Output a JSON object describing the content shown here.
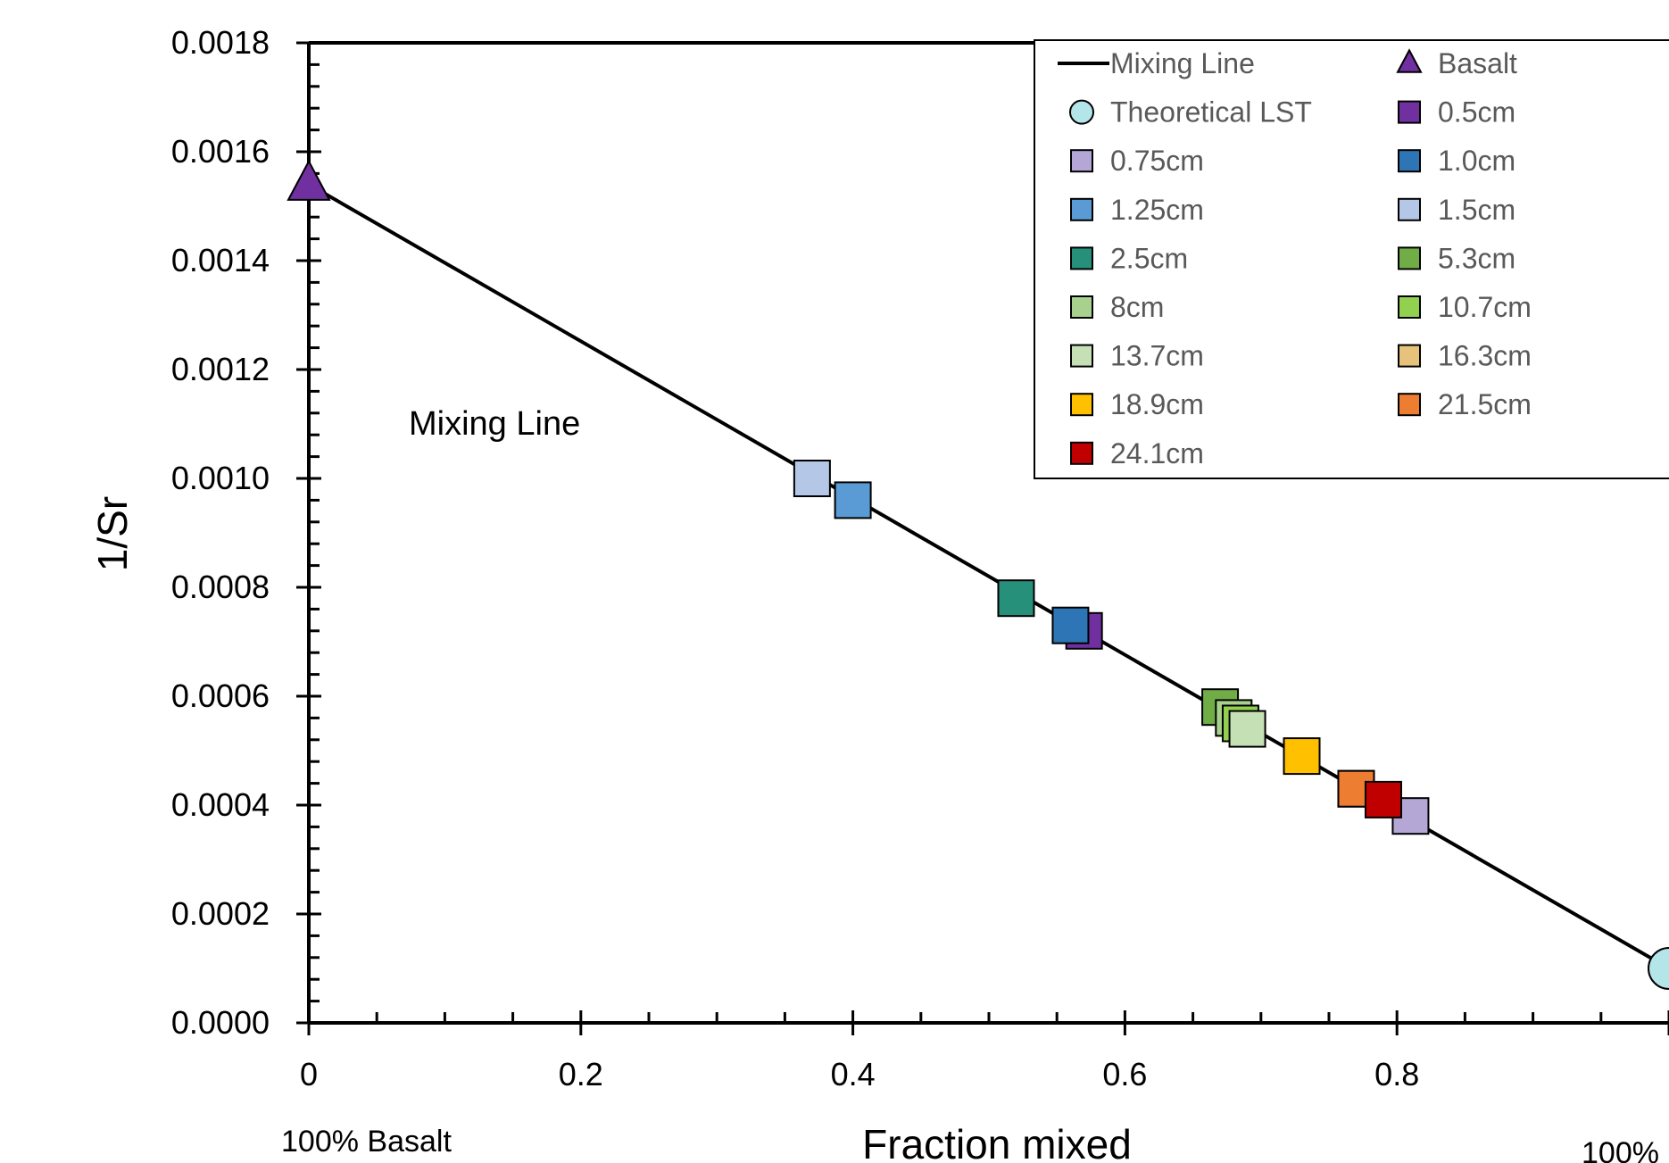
{
  "chart_data": {
    "type": "scatter",
    "xlabel": "Fraction mixed",
    "ylabel": "1/Sr",
    "xlim": [
      0,
      1.0
    ],
    "ylim": [
      0,
      0.0018
    ],
    "x_ticks": [
      "0",
      "0.2",
      "0.4",
      "0.6",
      "0.8"
    ],
    "y_ticks": [
      "0.0000",
      "0.0002",
      "0.0004",
      "0.0006",
      "0.0008",
      "0.0010",
      "0.0012",
      "0.0014",
      "0.0016",
      "0.0018"
    ],
    "x_end_labels": {
      "left": "100% Basalt",
      "right": "100%"
    },
    "annotation": "Mixing Line",
    "legend_position": "top-right",
    "mixing_line": {
      "name": "Mixing Line",
      "x": [
        0,
        1.0
      ],
      "y": [
        0.00154,
        0.0001
      ]
    },
    "series": [
      {
        "name": "Basalt",
        "marker": "triangle",
        "color": "#7030A0",
        "x": [
          0
        ],
        "y": [
          0.00154
        ]
      },
      {
        "name": "Theoretical LST",
        "marker": "circle",
        "color": "#B4E5E8",
        "x": [
          1.0
        ],
        "y": [
          0.0001
        ]
      },
      {
        "name": "0.5cm",
        "marker": "square",
        "color": "#7030A0",
        "x": [
          0.57
        ],
        "y": [
          0.00072
        ]
      },
      {
        "name": "0.75cm",
        "marker": "square",
        "color": "#B4A7D6",
        "x": [
          0.81
        ],
        "y": [
          0.00038
        ]
      },
      {
        "name": "1.0cm",
        "marker": "square",
        "color": "#2E75B6",
        "x": [
          0.56
        ],
        "y": [
          0.00073
        ]
      },
      {
        "name": "1.25cm",
        "marker": "square",
        "color": "#5B9BD5",
        "x": [
          0.4
        ],
        "y": [
          0.00096
        ]
      },
      {
        "name": "1.5cm",
        "marker": "square",
        "color": "#B4C7E7",
        "x": [
          0.37
        ],
        "y": [
          0.001
        ]
      },
      {
        "name": "2.5cm",
        "marker": "square",
        "color": "#26907A",
        "x": [
          0.52
        ],
        "y": [
          0.00078
        ]
      },
      {
        "name": "5.3cm",
        "marker": "square",
        "color": "#70AD47",
        "x": [
          0.67
        ],
        "y": [
          0.00058
        ]
      },
      {
        "name": "8cm",
        "marker": "square",
        "color": "#A9D18E",
        "x": [
          0.68
        ],
        "y": [
          0.00056
        ]
      },
      {
        "name": "10.7cm",
        "marker": "square",
        "color": "#92D050",
        "x": [
          0.685
        ],
        "y": [
          0.00055
        ]
      },
      {
        "name": "13.7cm",
        "marker": "square",
        "color": "#C5E0B4",
        "x": [
          0.69
        ],
        "y": [
          0.00054
        ]
      },
      {
        "name": "16.3cm",
        "marker": "square",
        "color": "#E6C27A",
        "x": [
          0.77
        ],
        "y": [
          0.00043
        ]
      },
      {
        "name": "18.9cm",
        "marker": "square",
        "color": "#FFC000",
        "x": [
          0.73
        ],
        "y": [
          0.00049
        ]
      },
      {
        "name": "21.5cm",
        "marker": "square",
        "color": "#ED7D31",
        "x": [
          0.77
        ],
        "y": [
          0.00043
        ]
      },
      {
        "name": "24.1cm",
        "marker": "square",
        "color": "#C00000",
        "x": [
          0.79
        ],
        "y": [
          0.00041
        ]
      }
    ]
  }
}
